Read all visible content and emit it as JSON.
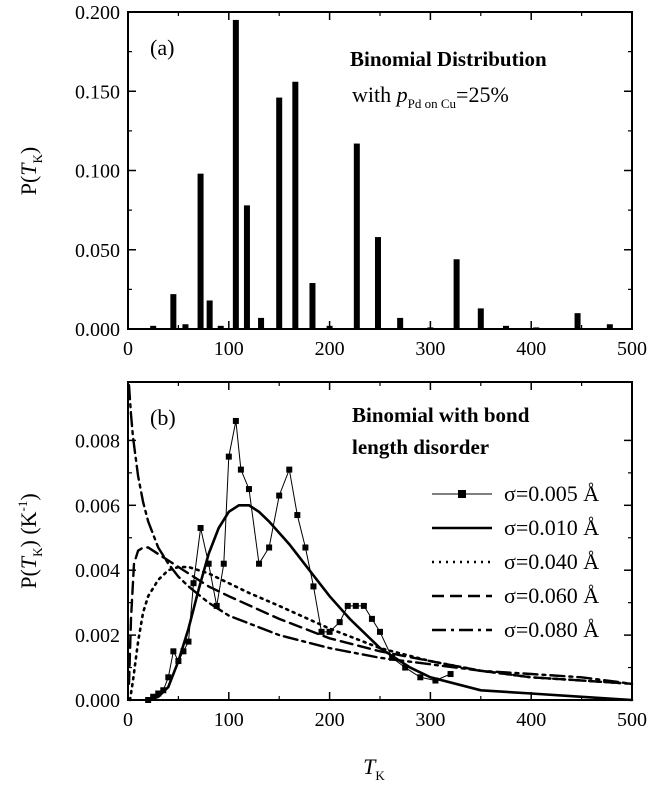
{
  "chart_data": [
    {
      "type": "bar",
      "panel_label": "(a)",
      "title": "Binomial Distribution",
      "subtitle": {
        "prefix": "with ",
        "var": "p",
        "sub": "Pd on Cu",
        "suffix": "=25%"
      },
      "ylabel": {
        "prefix": "P(",
        "var": "T",
        "sub": "K",
        "suffix": ")"
      },
      "xlim": [
        0,
        500
      ],
      "ylim": [
        0,
        0.2
      ],
      "xticks": [
        "0",
        "100",
        "200",
        "300",
        "400",
        "500"
      ],
      "yticks": [
        "0.000",
        "0.050",
        "0.100",
        "0.150",
        "0.200"
      ],
      "x": [
        25,
        45,
        57,
        72,
        81,
        92,
        107,
        118,
        132,
        150,
        166,
        183,
        200,
        227,
        248,
        270,
        300,
        326,
        350,
        375,
        405,
        446,
        478
      ],
      "values": [
        0.002,
        0.022,
        0.003,
        0.098,
        0.018,
        0.002,
        0.195,
        0.078,
        0.007,
        0.146,
        0.156,
        0.029,
        0.002,
        0.117,
        0.058,
        0.007,
        0.001,
        0.044,
        0.013,
        0.002,
        0.001,
        0.01,
        0.003
      ]
    },
    {
      "type": "line",
      "panel_label": "(b)",
      "title_lines": [
        "Binomial with bond",
        "length disorder"
      ],
      "ylabel": {
        "prefix": "P(",
        "var": "T",
        "sub": "K",
        "suffix": ") (K",
        "sup": "-1",
        "suffix2": ")"
      },
      "xlabel": {
        "var": "T",
        "sub": "K"
      },
      "xlim": [
        0,
        500
      ],
      "ylim": [
        0,
        0.0098
      ],
      "xticks": [
        "0",
        "100",
        "200",
        "300",
        "400",
        "500"
      ],
      "yticks": [
        "0.000",
        "0.002",
        "0.004",
        "0.006",
        "0.008"
      ],
      "series": [
        {
          "name": "σ=0.005 Å",
          "style": "markers",
          "x": [
            20,
            25,
            30,
            35,
            40,
            45,
            50,
            55,
            60,
            65,
            72,
            80,
            88,
            95,
            100,
            107,
            112,
            120,
            130,
            140,
            150,
            160,
            168,
            176,
            184,
            192,
            200,
            210,
            218,
            226,
            234,
            242,
            250,
            262,
            275,
            290,
            305,
            320
          ],
          "y": [
            0.0,
            0.0001,
            0.0002,
            0.0003,
            0.0007,
            0.0015,
            0.0012,
            0.0015,
            0.0018,
            0.0036,
            0.0053,
            0.0042,
            0.0029,
            0.0042,
            0.0075,
            0.0086,
            0.0071,
            0.0065,
            0.0042,
            0.0047,
            0.0063,
            0.0071,
            0.0057,
            0.0047,
            0.0035,
            0.0021,
            0.0021,
            0.0024,
            0.0029,
            0.0029,
            0.0029,
            0.0025,
            0.0021,
            0.0013,
            0.001,
            0.0007,
            0.0006,
            0.0008
          ]
        },
        {
          "name": "σ=0.010 Å",
          "style": "solid",
          "x": [
            20,
            30,
            40,
            50,
            60,
            70,
            80,
            90,
            100,
            110,
            120,
            130,
            140,
            160,
            180,
            200,
            220,
            250,
            280,
            300,
            350,
            400,
            450,
            500
          ],
          "y": [
            0.0,
            0.0001,
            0.0004,
            0.0012,
            0.0022,
            0.0034,
            0.0045,
            0.0053,
            0.0058,
            0.006,
            0.006,
            0.0058,
            0.0055,
            0.0048,
            0.004,
            0.0032,
            0.0025,
            0.0016,
            0.001,
            0.0007,
            0.0003,
            0.0002,
            0.0001,
            0.0
          ]
        },
        {
          "name": "σ=0.040 Å",
          "style": "dotted",
          "x": [
            2,
            5,
            10,
            15,
            20,
            30,
            40,
            50,
            60,
            70,
            80,
            100,
            120,
            150,
            200,
            250,
            300,
            350,
            400,
            450,
            500
          ],
          "y": [
            0.0,
            0.0006,
            0.0018,
            0.0027,
            0.0032,
            0.0037,
            0.004,
            0.0041,
            0.0041,
            0.004,
            0.0039,
            0.0036,
            0.0033,
            0.0029,
            0.0022,
            0.0016,
            0.0012,
            0.0009,
            0.0007,
            0.0006,
            0.0005
          ]
        },
        {
          "name": "σ=0.060 Å",
          "style": "dashed",
          "x": [
            1,
            3,
            6,
            10,
            15,
            20,
            30,
            40,
            60,
            80,
            100,
            150,
            200,
            250,
            300,
            350,
            400,
            450,
            500
          ],
          "y": [
            0.0005,
            0.0025,
            0.0042,
            0.0046,
            0.0047,
            0.0047,
            0.0045,
            0.0043,
            0.0039,
            0.0035,
            0.0032,
            0.0025,
            0.0019,
            0.0015,
            0.0012,
            0.0009,
            0.0007,
            0.0006,
            0.0005
          ]
        },
        {
          "name": "σ=0.080 Å",
          "style": "dashdot",
          "x": [
            1,
            3,
            5,
            10,
            15,
            20,
            30,
            40,
            50,
            60,
            80,
            100,
            150,
            200,
            250,
            300,
            350,
            400,
            450,
            500
          ],
          "y": [
            0.0097,
            0.0088,
            0.0081,
            0.0069,
            0.0061,
            0.0055,
            0.0047,
            0.0042,
            0.0038,
            0.0035,
            0.003,
            0.0026,
            0.002,
            0.0016,
            0.0013,
            0.0011,
            0.0009,
            0.0008,
            0.0007,
            0.0005
          ]
        }
      ]
    }
  ]
}
